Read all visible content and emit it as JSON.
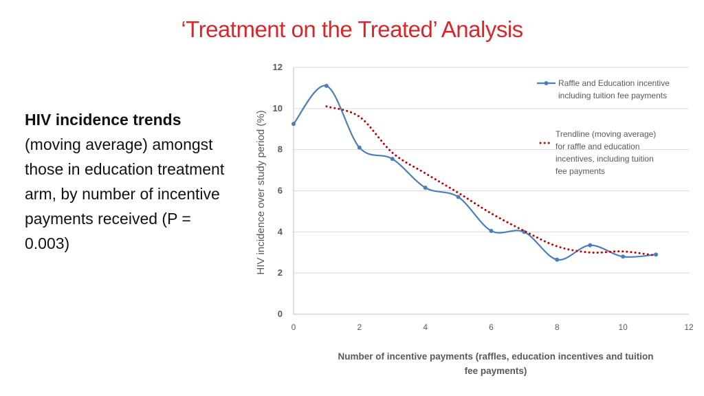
{
  "slide": {
    "title": "‘Treatment on the Treated’ Analysis",
    "description": {
      "bold": "HIV incidence trends",
      "rest": " (moving average) amongst those in education treatment arm, by number of incentive payments received (P = 0.003)"
    }
  },
  "chart_data": {
    "type": "line",
    "title": "",
    "xlabel": [
      "Number of incentive payments (raffles, education incentives and tuition",
      "fee payments)"
    ],
    "ylabel": "HIV incidence over study period  (%)",
    "xlim": [
      0,
      12
    ],
    "ylim": [
      0,
      12
    ],
    "xticks": [
      0,
      2,
      4,
      6,
      8,
      10,
      12
    ],
    "yticks": [
      0,
      2,
      4,
      6,
      8,
      10,
      12
    ],
    "grid": "horizontal",
    "series": [
      {
        "name": "Raffle and Education incentive including  tuition fee payments",
        "legend_lines": [
          "Raffle and Education incentive",
          "including  tuition fee payments"
        ],
        "style": "smooth line with markers",
        "color": "#4a7ebb",
        "x": [
          0,
          1,
          2,
          3,
          4,
          5,
          6,
          7,
          8,
          9,
          10,
          11
        ],
        "y": [
          9.25,
          11.1,
          8.1,
          7.55,
          6.15,
          5.7,
          4.05,
          4.0,
          2.65,
          3.35,
          2.8,
          2.9
        ]
      },
      {
        "name": "Trendline (moving average) for raffle and education incentives, including tuition fee payments",
        "legend_lines": [
          "Trendline (moving average)",
          "for raffle and education",
          "incentives, including tuition",
          "fee payments"
        ],
        "style": "dotted",
        "color": "#c00000",
        "x": [
          1,
          2,
          3,
          4,
          5,
          6,
          7,
          8,
          9,
          10,
          11
        ],
        "y": [
          10.1,
          9.6,
          7.85,
          6.85,
          5.9,
          4.9,
          4.05,
          3.3,
          3.0,
          3.05,
          2.85
        ]
      }
    ]
  }
}
